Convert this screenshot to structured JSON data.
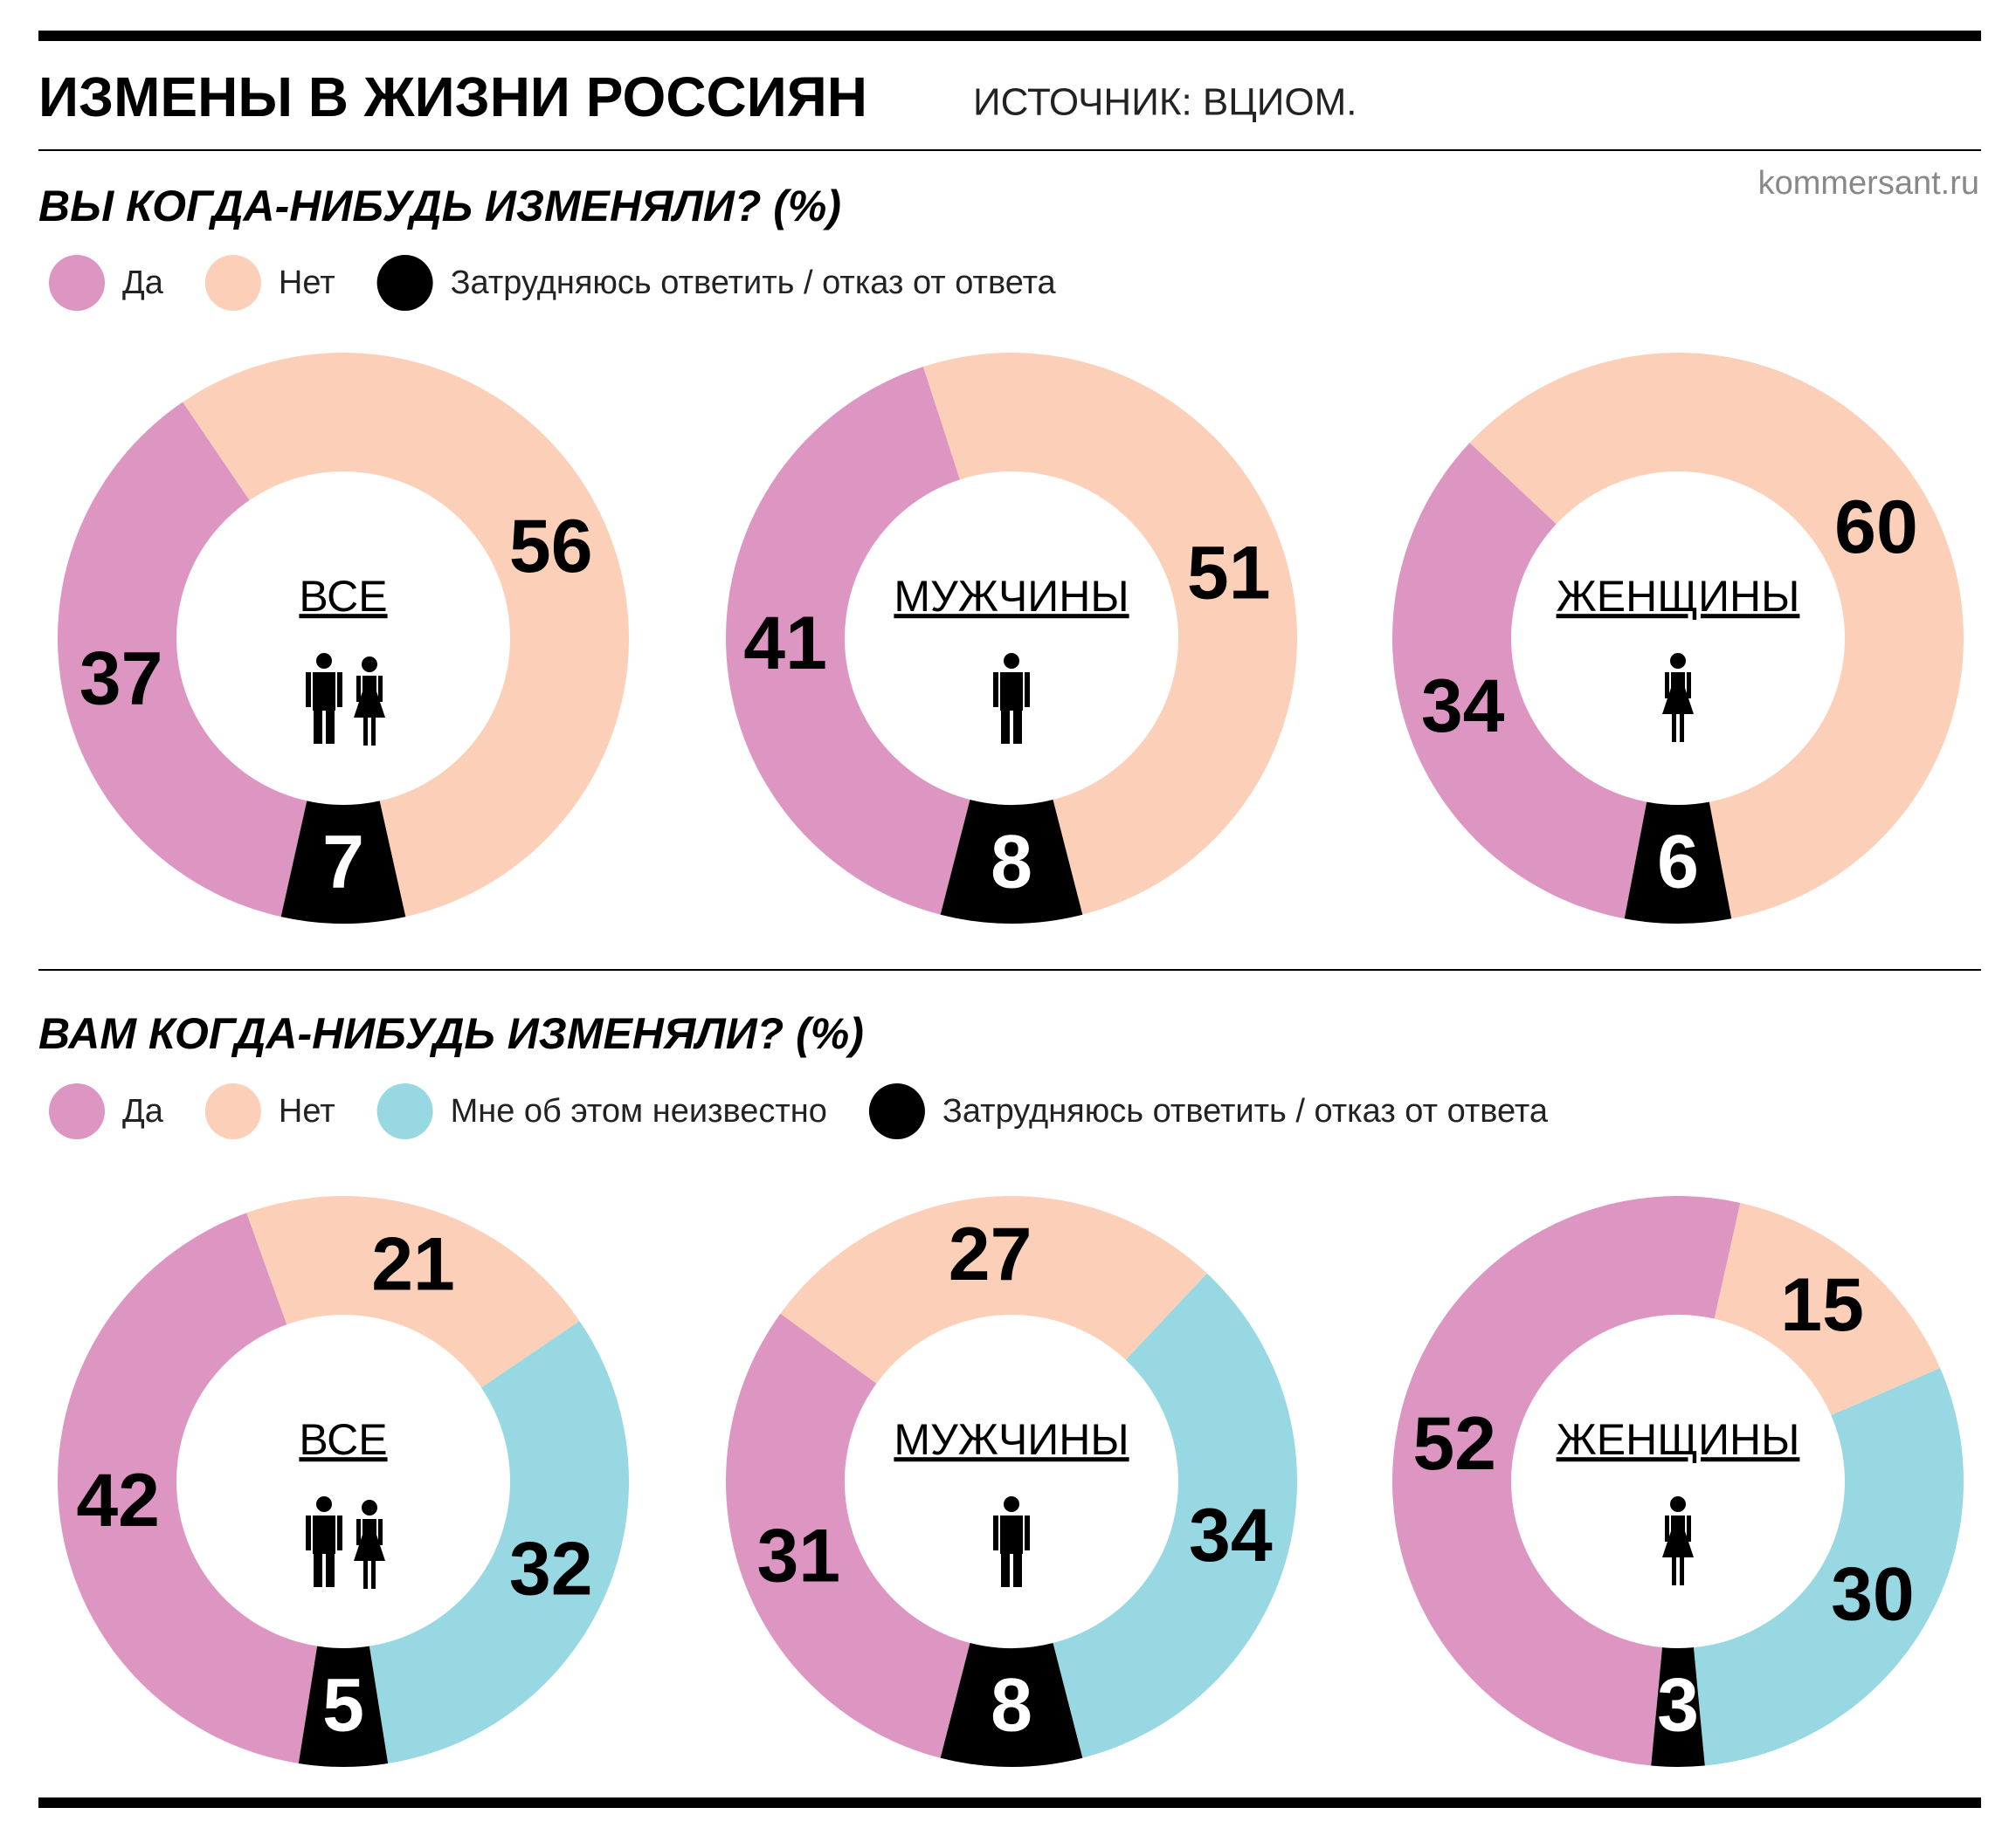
{
  "title": "ИЗМЕНЫ В ЖИЗНИ РОССИЯН",
  "source": "ИСТОЧНИК: ВЦИОМ.",
  "site": "kommersant.ru",
  "chart_data": [
    {
      "type": "donut",
      "title": "ВЫ КОГДА-НИБУДЬ ИЗМЕНЯЛИ? (%)",
      "categories": [
        "ВСЕ",
        "МУЖЧИНЫ",
        "ЖЕНЩИНЫ"
      ],
      "series": [
        {
          "name": "Да",
          "color": "#dd96c2",
          "values": [
            37,
            41,
            34
          ]
        },
        {
          "name": "Нет",
          "color": "#fcd0b8",
          "values": [
            56,
            51,
            60
          ]
        },
        {
          "name": "Затрудняюсь ответить / отказ от ответа",
          "color": "#000000",
          "values": [
            7,
            8,
            6
          ]
        }
      ]
    },
    {
      "type": "donut",
      "title": "ВАМ КОГДА-НИБУДЬ ИЗМЕНЯЛИ? (%)",
      "categories": [
        "ВСЕ",
        "МУЖЧИНЫ",
        "ЖЕНЩИНЫ"
      ],
      "series": [
        {
          "name": "Да",
          "color": "#dd96c2",
          "values": [
            42,
            31,
            52
          ]
        },
        {
          "name": "Нет",
          "color": "#fcd0b8",
          "values": [
            21,
            27,
            15
          ]
        },
        {
          "name": "Мне об этом неизвестно",
          "color": "#98d8e2",
          "values": [
            32,
            34,
            30
          ]
        },
        {
          "name": "Затрудняюсь ответить / отказ от ответа",
          "color": "#000000",
          "values": [
            5,
            8,
            3
          ]
        }
      ]
    }
  ]
}
